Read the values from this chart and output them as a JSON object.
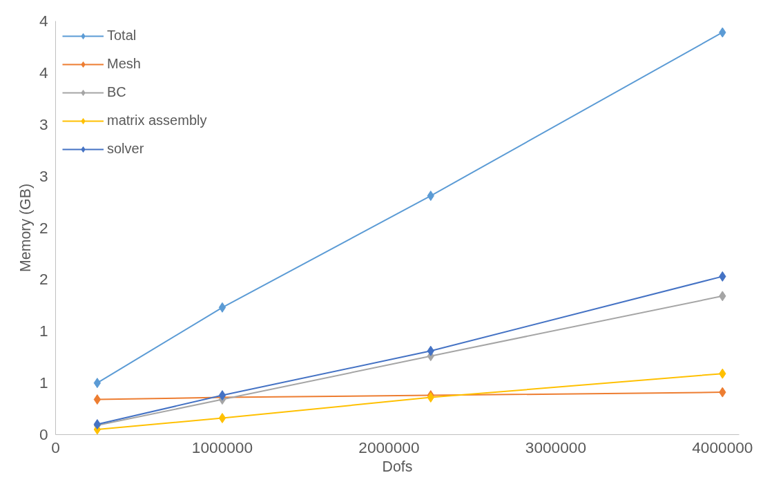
{
  "chart_data": {
    "type": "line",
    "xlabel": "Dofs",
    "ylabel": "Memory (GB)",
    "x": [
      250000,
      1000000,
      2250000,
      4000000
    ],
    "series": [
      {
        "name": "Total",
        "color": "#5b9bd5",
        "values": [
          0.5,
          1.23,
          2.31,
          3.89
        ]
      },
      {
        "name": "Mesh",
        "color": "#ed7d31",
        "values": [
          0.34,
          0.36,
          0.38,
          0.41
        ]
      },
      {
        "name": "BC",
        "color": "#a5a5a5",
        "values": [
          0.09,
          0.34,
          0.76,
          1.34
        ]
      },
      {
        "name": "matrix assembly",
        "color": "#ffc000",
        "values": [
          0.05,
          0.16,
          0.36,
          0.59
        ]
      },
      {
        "name": "solver",
        "color": "#4472c4",
        "values": [
          0.1,
          0.38,
          0.81,
          1.53
        ]
      }
    ],
    "xlim": [
      0,
      4100000
    ],
    "ylim": [
      0,
      4
    ],
    "xticks": [
      0,
      1000000,
      2000000,
      3000000,
      4000000
    ],
    "yticks": [
      0,
      {
        "value": 0.5,
        "label": "1"
      },
      1,
      {
        "value": 1.5,
        "label": "2"
      },
      2,
      {
        "value": 2.5,
        "label": "3"
      },
      3,
      {
        "value": 3.5,
        "label": "4"
      },
      4
    ],
    "marker": "diamond",
    "grid": false,
    "legend": "top left"
  }
}
